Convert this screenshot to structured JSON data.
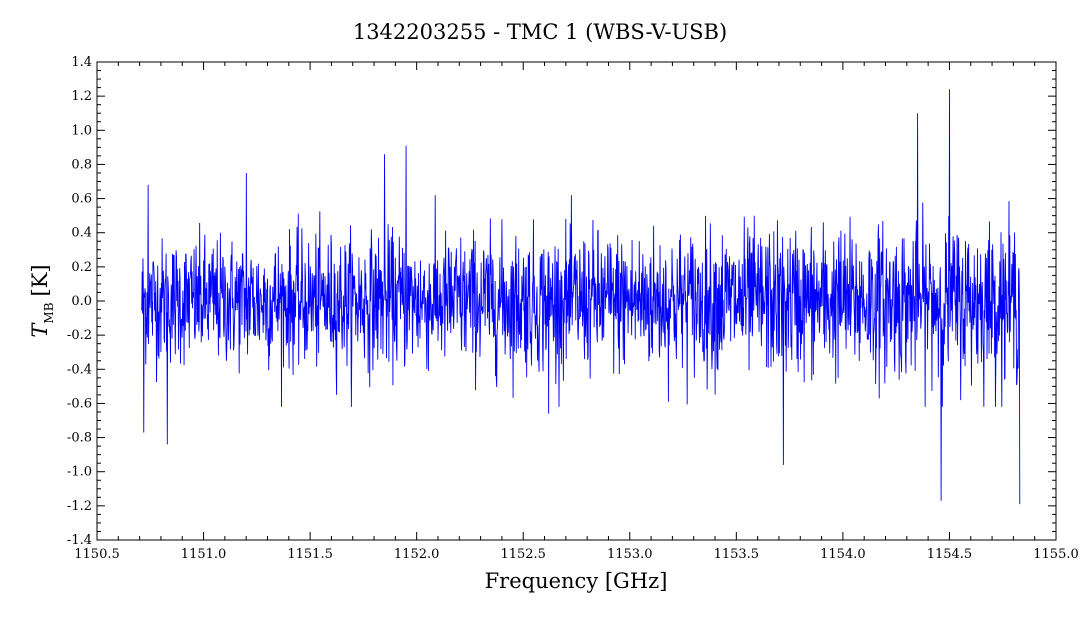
{
  "chart_data": {
    "type": "line",
    "title": "1342203255 - TMC 1 (WBS-V-USB)",
    "xlabel": "Frequency [GHz]",
    "ylabel_main": "T",
    "ylabel_sub": "MB",
    "ylabel_unit": "[K]",
    "xlim": [
      1150.5,
      1155.0
    ],
    "ylim": [
      -1.4,
      1.4
    ],
    "x_ticks": [
      1150.5,
      1151.0,
      1151.5,
      1152.0,
      1152.5,
      1153.0,
      1153.5,
      1154.0,
      1154.5,
      1155.0
    ],
    "x_tick_labels": [
      "1150.5",
      "1151.0",
      "1151.5",
      "1152.0",
      "1152.5",
      "1153.0",
      "1153.5",
      "1154.0",
      "1154.5",
      "1155.0"
    ],
    "y_ticks": [
      -1.4,
      -1.2,
      -1.0,
      -0.8,
      -0.6,
      -0.4,
      -0.2,
      0.0,
      0.2,
      0.4,
      0.6,
      0.8,
      1.0,
      1.2,
      1.4
    ],
    "y_tick_labels": [
      "-1.4",
      "-1.2",
      "-1.0",
      "-0.8",
      "-0.6",
      "-0.4",
      "-0.2",
      "0.0",
      "0.2",
      "0.4",
      "0.6",
      "0.8",
      "1.0",
      "1.2",
      "1.4"
    ],
    "grid": false,
    "series": [
      {
        "color": "#0000ff",
        "x_range": [
          1150.71,
          1154.83
        ],
        "n_points": 2200,
        "noise_rms": 0.18,
        "features": [
          {
            "x": 1150.72,
            "y": -0.77
          },
          {
            "x": 1150.74,
            "y": 0.68
          },
          {
            "x": 1150.83,
            "y": -0.84
          },
          {
            "x": 1151.2,
            "y": 0.75
          },
          {
            "x": 1151.85,
            "y": 0.86
          },
          {
            "x": 1151.95,
            "y": 0.91
          },
          {
            "x": 1152.62,
            "y": -0.66
          },
          {
            "x": 1153.72,
            "y": -0.96
          },
          {
            "x": 1154.35,
            "y": 1.1
          },
          {
            "x": 1154.46,
            "y": -1.17
          },
          {
            "x": 1154.5,
            "y": 1.24
          },
          {
            "x": 1154.83,
            "y": -1.19
          }
        ]
      }
    ]
  }
}
